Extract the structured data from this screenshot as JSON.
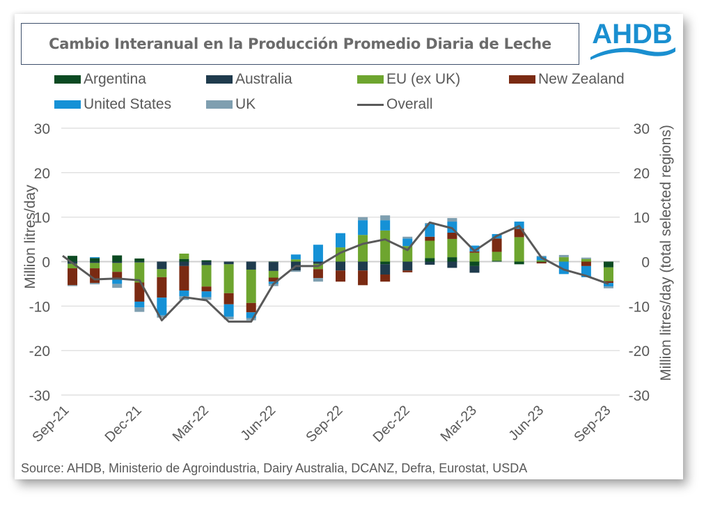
{
  "header": {
    "title": "Cambio Interanual en la Producción Promedio Diaria de Leche",
    "logo_text": "AHDB"
  },
  "source": "Source: AHDB, Ministerio de Agroindustria, Dairy Australia, DCANZ, Defra, Eurostat, USDA",
  "colors": {
    "argentina": "#0b4a22",
    "australia": "#1f3b4d",
    "eu": "#6ea52f",
    "new_zealand": "#7a2a12",
    "united_states": "#1591d6",
    "uk": "#7f9fb0",
    "overall": "#595959",
    "logo": "#1a8fd0",
    "grid": "#d9d9d9",
    "text": "#595959"
  },
  "chart_data": {
    "type": "bar",
    "stacked": true,
    "title": "Cambio Interanual en la Producción Promedio Diaria de Leche",
    "ylabel": "Million litres/day",
    "y2label": "Million litres/day (total selected regions)",
    "ylim": [
      -30,
      30
    ],
    "y2lim": [
      -30,
      30
    ],
    "yticks": [
      30,
      20,
      10,
      0,
      -10,
      -20,
      -30
    ],
    "grid": true,
    "legend_position": "top",
    "categories": [
      "Sep-21",
      "Oct-21",
      "Nov-21",
      "Dec-21",
      "Jan-22",
      "Feb-22",
      "Mar-22",
      "Apr-22",
      "May-22",
      "Jun-22",
      "Jul-22",
      "Aug-22",
      "Sep-22",
      "Oct-22",
      "Nov-22",
      "Dec-22",
      "Jan-23",
      "Feb-23",
      "Mar-23",
      "Apr-23",
      "May-23",
      "Jun-23",
      "Jul-23",
      "Aug-23",
      "Sep-23"
    ],
    "xtick_labels": [
      "Sep-21",
      "Dec-21",
      "Mar-22",
      "Jun-22",
      "Sep-22",
      "Dec-22",
      "Mar-23",
      "Jun-23",
      "Sep-23"
    ],
    "series": [
      {
        "name": "Argentina",
        "key": "argentina",
        "values": [
          1.3,
          0.8,
          1.4,
          0.7,
          0.0,
          0.6,
          0.3,
          0.0,
          0.0,
          -0.1,
          0.0,
          0.0,
          0.0,
          0.0,
          -0.6,
          0.0,
          0.8,
          1.0,
          -1.0,
          0.2,
          -0.6,
          -0.1,
          0.0,
          0.0,
          -1.3
        ]
      },
      {
        "name": "Australia",
        "key": "australia",
        "values": [
          -0.5,
          -0.3,
          -0.3,
          -0.2,
          -1.7,
          -1.0,
          -0.8,
          -0.6,
          -1.8,
          -2.0,
          -2.0,
          -0.5,
          -2.0,
          -2.0,
          -2.3,
          -2.0,
          -0.7,
          -1.4,
          -1.5,
          0.0,
          0.0,
          0.0,
          0.0,
          0.0,
          0.0
        ]
      },
      {
        "name": "EU (ex UK)",
        "key": "eu",
        "values": [
          -1.0,
          -1.2,
          -2.0,
          -4.5,
          -1.8,
          1.2,
          -4.8,
          -6.5,
          -7.5,
          -1.5,
          0.5,
          -1.2,
          3.2,
          6.0,
          7.0,
          3.5,
          3.9,
          4.1,
          2.0,
          2.0,
          5.5,
          0.3,
          1.0,
          0.6,
          -3.1
        ]
      },
      {
        "name": "New Zealand",
        "key": "new_zealand",
        "values": [
          -3.8,
          -3.3,
          -1.5,
          -4.3,
          -4.6,
          -5.5,
          -1.1,
          -2.5,
          -2.1,
          -0.9,
          0.0,
          -2.0,
          -2.5,
          -3.3,
          -1.6,
          -0.4,
          0.9,
          1.4,
          0.3,
          3.0,
          1.9,
          -0.3,
          0.0,
          -1.0,
          -0.4
        ]
      },
      {
        "name": "United States",
        "key": "united_states",
        "values": [
          0.0,
          0.2,
          -1.2,
          -1.3,
          -4.0,
          -1.3,
          -1.3,
          -2.8,
          -1.3,
          -0.5,
          1.1,
          3.8,
          3.2,
          3.3,
          2.3,
          1.7,
          2.9,
          2.5,
          1.3,
          1.0,
          1.6,
          0.8,
          -2.8,
          -2.5,
          -0.8
        ]
      },
      {
        "name": "UK",
        "key": "uk",
        "values": [
          -0.2,
          -0.3,
          -0.9,
          -1.0,
          -0.5,
          -0.8,
          -0.6,
          -0.6,
          -0.5,
          -0.5,
          -0.3,
          -0.8,
          0.0,
          0.7,
          1.1,
          0.4,
          0.2,
          0.8,
          0.0,
          0.0,
          0.0,
          0.2,
          0.5,
          0.3,
          -0.4
        ]
      }
    ],
    "overall": {
      "name": "Overall",
      "values": [
        1.3,
        -4.0,
        -3.8,
        -4.2,
        -13.2,
        -8.0,
        -8.7,
        -13.5,
        -13.5,
        -5.0,
        -1.0,
        -1.0,
        2.0,
        4.0,
        5.0,
        2.6,
        8.8,
        7.5,
        2.4,
        5.8,
        8.0,
        0.9,
        -1.8,
        -3.2,
        -5.0
      ]
    },
    "legend": [
      "Argentina",
      "Australia",
      "EU (ex UK)",
      "New Zealand",
      "United States",
      "UK",
      "Overall"
    ]
  }
}
